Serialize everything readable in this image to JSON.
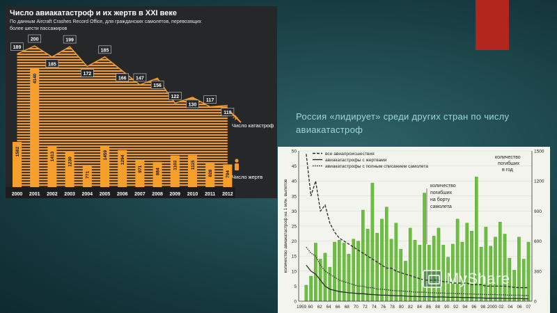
{
  "slide": {
    "text": "Россия «лидирует» среди других стран по числу авиакатастроф",
    "accent_color": "#b3261e",
    "watermark_text": "MyShare",
    "watermark_icon": "presentation-icon"
  },
  "chart_data": [
    {
      "type": "area",
      "title": "Число авиакатастроф и их жертв в XXI веке",
      "subtitle": "По данным Aircraft Crashes Record Office, для гражданских самолетов, перевозящих более шести пассажиров",
      "categories": [
        "2000",
        "2001",
        "2002",
        "2003",
        "2004",
        "2005",
        "2006",
        "2007",
        "2008",
        "2009",
        "2010",
        "2011",
        "2012"
      ],
      "series": [
        {
          "name": "Число катастроф",
          "values": [
            189,
            200,
            185,
            199,
            172,
            185,
            166,
            147,
            156,
            122,
            130,
            117,
            119
          ]
        },
        {
          "name": "Число жертв",
          "values": [
            1582,
            4140,
            1413,
            1230,
            771,
            1459,
            1294,
            971,
            884,
            1103,
            1115,
            828,
            794
          ]
        }
      ],
      "legend_crashes_icon": "crossed-plane-icon",
      "legend_victims_icon": "person-icon",
      "colors": {
        "background": "#262729",
        "area": "#f29a2e",
        "victim_bars": "#f5a02a",
        "label_text": "#ffffff"
      }
    },
    {
      "type": "bar",
      "y_ticks_left": [
        0,
        5,
        10,
        15,
        20,
        25,
        30,
        35,
        40,
        45,
        50
      ],
      "y_ticks_right": [
        0,
        300,
        600,
        900,
        1200,
        1500
      ],
      "ylim": [
        0,
        50
      ],
      "ylim_right": [
        0,
        1500
      ],
      "x_tick_labels": [
        "1959",
        "60",
        "62",
        "64",
        "66",
        "68",
        "70",
        "72",
        "74",
        "76",
        "78",
        "80",
        "82",
        "84",
        "86",
        "88",
        "90",
        "92",
        "94",
        "96",
        "98",
        "2000",
        "02",
        "04",
        "06",
        "07"
      ],
      "left_axis_label": "количество авиакатастроф на 1 млн. вылетов",
      "right_axis_label": "количество погибших в год",
      "legend": [
        "все авиапроисшествия",
        "авиакатастрофы с жертвами",
        "авиакатастрофы с полным списанием самолета"
      ],
      "annotation": "количество погибших на борту самолета",
      "bar_years": [
        1960,
        1961,
        1962,
        1963,
        1964,
        1965,
        1966,
        1967,
        1968,
        1969,
        1970,
        1971,
        1972,
        1973,
        1974,
        1975,
        1976,
        1977,
        1978,
        1979,
        1980,
        1981,
        1982,
        1983,
        1984,
        1985,
        1986,
        1987,
        1988,
        1989,
        1990,
        1991,
        1992,
        1993,
        1994,
        1995,
        1996,
        1997,
        1998,
        1999,
        2000,
        2001,
        2002,
        2003,
        2004,
        2005,
        2006,
        2007
      ],
      "fatalities": [
        160,
        250,
        580,
        420,
        480,
        340,
        590,
        610,
        580,
        470,
        620,
        600,
        910,
        720,
        1180,
        680,
        820,
        940,
        620,
        780,
        520,
        400,
        730,
        610,
        560,
        1080,
        560,
        650,
        730,
        560,
        440,
        570,
        820,
        590,
        780,
        700,
        1240,
        540,
        740,
        550,
        640,
        790,
        670,
        430,
        310,
        640,
        420,
        590
      ],
      "all_accidents": [
        49,
        35,
        40,
        30,
        32,
        26,
        23,
        21,
        20,
        19,
        18,
        17,
        16,
        15,
        14,
        13,
        12,
        11,
        11,
        10,
        9.5,
        9,
        8.5,
        8,
        7.5,
        7,
        7,
        7,
        7,
        6.5,
        6.5,
        6,
        6,
        6,
        6,
        5.5,
        5.5,
        5.5,
        5,
        5,
        5,
        5,
        5,
        4.8,
        4.6,
        4.5,
        4.5,
        4.5
      ],
      "fatal_accidents": [
        12,
        10,
        9,
        7,
        5,
        4,
        3.6,
        3.2,
        3,
        2.8,
        2.7,
        2.5,
        2.5,
        2.3,
        2.2,
        2.1,
        2,
        2,
        1.9,
        1.8,
        1.8,
        1.7,
        1.6,
        1.6,
        1.5,
        1.5,
        1.5,
        1.4,
        1.4,
        1.4,
        1.3,
        1.3,
        1.3,
        1.2,
        1.2,
        1.2,
        1.1,
        1.1,
        1,
        1,
        1,
        1,
        0.9,
        0.9,
        0.9,
        0.9,
        0.8,
        0.8
      ],
      "hull_losses": [
        18,
        16,
        15,
        12,
        10,
        9,
        8,
        7,
        6.5,
        6,
        5.5,
        5,
        5,
        4.5,
        4.5,
        4,
        4,
        3.8,
        3.6,
        3.5,
        3.4,
        3.3,
        3.2,
        3,
        3,
        3,
        2.8,
        2.8,
        2.7,
        2.7,
        2.6,
        2.6,
        2.5,
        2.5,
        2.4,
        2.4,
        2.3,
        2.3,
        2.2,
        2.2,
        2.2,
        2.1,
        2.1,
        2,
        2,
        2,
        1.9,
        1.9
      ],
      "colors": {
        "bars": "#6abf3c",
        "lines": "#2a2a2a",
        "background": "#f4f4ee"
      }
    }
  ]
}
